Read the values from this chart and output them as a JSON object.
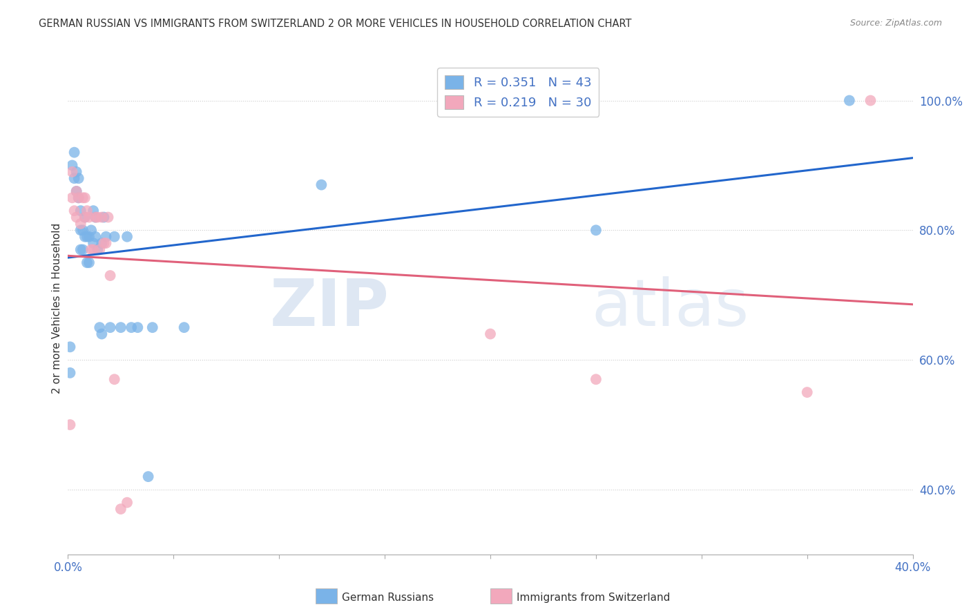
{
  "title": "GERMAN RUSSIAN VS IMMIGRANTS FROM SWITZERLAND 2 OR MORE VEHICLES IN HOUSEHOLD CORRELATION CHART",
  "source": "Source: ZipAtlas.com",
  "ylabel": "2 or more Vehicles in Household",
  "x_min": 0.0,
  "x_max": 0.4,
  "y_min": 0.3,
  "y_max": 1.06,
  "x_ticks": [
    0.0,
    0.05,
    0.1,
    0.15,
    0.2,
    0.25,
    0.3,
    0.35,
    0.4
  ],
  "y_ticks": [
    0.4,
    0.6,
    0.8,
    1.0
  ],
  "y_tick_labels": [
    "40.0%",
    "60.0%",
    "80.0%",
    "100.0%"
  ],
  "blue_color": "#7ab3e8",
  "pink_color": "#f2a8bc",
  "blue_line_color": "#2266cc",
  "pink_line_color": "#e0607a",
  "blue_R": 0.351,
  "blue_N": 43,
  "pink_R": 0.219,
  "pink_N": 30,
  "blue_x": [
    0.001,
    0.001,
    0.002,
    0.003,
    0.003,
    0.004,
    0.004,
    0.005,
    0.005,
    0.006,
    0.006,
    0.006,
    0.007,
    0.007,
    0.008,
    0.008,
    0.009,
    0.009,
    0.01,
    0.01,
    0.011,
    0.012,
    0.012,
    0.013,
    0.013,
    0.014,
    0.015,
    0.016,
    0.016,
    0.017,
    0.018,
    0.02,
    0.022,
    0.025,
    0.028,
    0.03,
    0.033,
    0.038,
    0.04,
    0.055,
    0.12,
    0.25,
    0.37
  ],
  "blue_y": [
    0.58,
    0.62,
    0.9,
    0.88,
    0.92,
    0.86,
    0.89,
    0.85,
    0.88,
    0.77,
    0.8,
    0.83,
    0.77,
    0.8,
    0.79,
    0.82,
    0.75,
    0.79,
    0.75,
    0.79,
    0.8,
    0.78,
    0.83,
    0.79,
    0.82,
    0.77,
    0.65,
    0.64,
    0.78,
    0.82,
    0.79,
    0.65,
    0.79,
    0.65,
    0.79,
    0.65,
    0.65,
    0.42,
    0.65,
    0.65,
    0.87,
    0.8,
    1.0
  ],
  "pink_x": [
    0.001,
    0.002,
    0.002,
    0.003,
    0.004,
    0.004,
    0.005,
    0.006,
    0.007,
    0.008,
    0.008,
    0.009,
    0.01,
    0.011,
    0.012,
    0.013,
    0.014,
    0.015,
    0.016,
    0.017,
    0.018,
    0.019,
    0.02,
    0.022,
    0.025,
    0.028,
    0.2,
    0.25,
    0.35,
    0.38
  ],
  "pink_y": [
    0.5,
    0.85,
    0.89,
    0.83,
    0.82,
    0.86,
    0.85,
    0.81,
    0.85,
    0.82,
    0.85,
    0.83,
    0.82,
    0.77,
    0.77,
    0.82,
    0.82,
    0.77,
    0.82,
    0.78,
    0.78,
    0.82,
    0.73,
    0.57,
    0.37,
    0.38,
    0.64,
    0.57,
    0.55,
    1.0
  ],
  "watermark_zip": "ZIP",
  "watermark_atlas": "atlas",
  "background_color": "#ffffff",
  "grid_color": "#cccccc",
  "tick_color": "#4472c4",
  "title_color": "#333333",
  "source_color": "#888888",
  "legend_text_color": "#4472c4",
  "bottom_legend_label1": "German Russians",
  "bottom_legend_label2": "Immigrants from Switzerland"
}
